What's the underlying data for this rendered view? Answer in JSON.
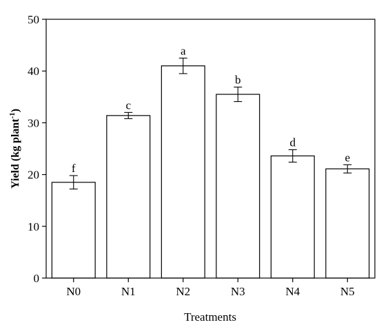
{
  "chart_data": {
    "type": "bar",
    "categories": [
      "N0",
      "N1",
      "N2",
      "N3",
      "N4",
      "N5"
    ],
    "values": [
      18.5,
      31.4,
      41.0,
      35.5,
      23.6,
      21.1
    ],
    "errors": [
      1.3,
      0.6,
      1.5,
      1.4,
      1.2,
      0.8
    ],
    "significance": [
      "f",
      "c",
      "a",
      "b",
      "d",
      "e"
    ],
    "xlabel": "Treatments",
    "ylabel": {
      "main": "Yield (kg plant",
      "superscript": "-1",
      "close": ")"
    },
    "ylim": [
      0,
      50
    ],
    "yticks": [
      "0",
      "10",
      "20",
      "30",
      "40",
      "50"
    ],
    "grid": false,
    "legend": "none"
  }
}
